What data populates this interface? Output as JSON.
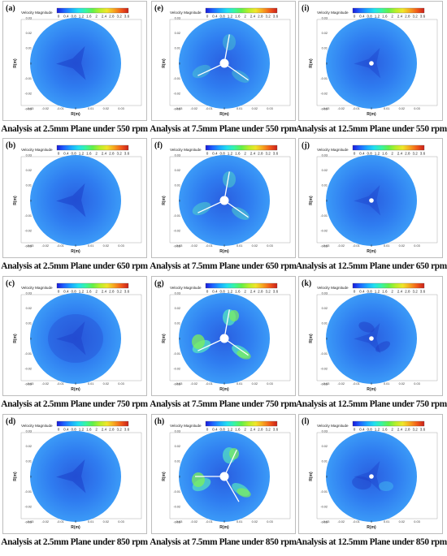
{
  "colorbar": {
    "title": "Velocity Magnitude",
    "ticks": [
      "0",
      "0.4",
      "0.8",
      "1.2",
      "1.6",
      "2",
      "2.4",
      "2.8",
      "3.2",
      "3.6"
    ],
    "colors": [
      "#1a1ad9",
      "#1f63ff",
      "#1aa8ff",
      "#22dff0",
      "#36f5a4",
      "#62f04a",
      "#b6ef2a",
      "#f0e62a",
      "#f7a41f",
      "#f25a1a",
      "#c8201a"
    ]
  },
  "axes": {
    "ylabel": "R(m)",
    "xlabel": "R(m)",
    "xticks": [
      "-0.03",
      "-0.02",
      "-0.01",
      "0",
      "0.01",
      "0.02",
      "0.03"
    ],
    "yticks": [
      "0.03",
      "0.02",
      "0.01",
      "0",
      "-0.01",
      "-0.02",
      "-0.03"
    ]
  },
  "panels": [
    {
      "letter": "(a)",
      "caption": "Analysis at 2.5mm Plane under 550 rpm",
      "plane": "2.5",
      "rpm": "550",
      "mode": "low"
    },
    {
      "letter": "(e)",
      "caption": "Analysis at 7.5mm Plane under 550 rpm",
      "plane": "7.5",
      "rpm": "550",
      "mode": "blade1"
    },
    {
      "letter": "(i)",
      "caption": "Analysis at 12.5mm Plane under 550 rpm",
      "plane": "12.5",
      "rpm": "550",
      "mode": "shaft"
    },
    {
      "letter": "(b)",
      "caption": "Analysis at 2.5mm Plane under 650 rpm",
      "plane": "2.5",
      "rpm": "650",
      "mode": "low"
    },
    {
      "letter": "(f)",
      "caption": "Analysis at 7.5mm Plane under 650 rpm",
      "plane": "7.5",
      "rpm": "650",
      "mode": "blade2"
    },
    {
      "letter": "(j)",
      "caption": "Analysis at 12.5mm Plane under 650 rpm",
      "plane": "12.5",
      "rpm": "650",
      "mode": "shaft"
    },
    {
      "letter": "(c)",
      "caption": "Analysis at 2.5mm Plane under 750 rpm",
      "plane": "2.5",
      "rpm": "750",
      "mode": "low2"
    },
    {
      "letter": "(g)",
      "caption": "Analysis at 7.5mm Plane under 750 rpm",
      "plane": "7.5",
      "rpm": "750",
      "mode": "blade3"
    },
    {
      "letter": "(k)",
      "caption": "Analysis at 12.5mm Plane under 750 rpm",
      "plane": "12.5",
      "rpm": "750",
      "mode": "shaft2"
    },
    {
      "letter": "(d)",
      "caption": "Analysis at 2.5mm Plane under 850 rpm",
      "plane": "2.5",
      "rpm": "850",
      "mode": "low"
    },
    {
      "letter": "(h)",
      "caption": "Analysis at 7.5mm Plane under 850 rpm",
      "plane": "7.5",
      "rpm": "850",
      "mode": "blade4"
    },
    {
      "letter": "(l)",
      "caption": "Analysis at 12.5mm Plane under 850 rpm",
      "plane": "12.5",
      "rpm": "850",
      "mode": "shaft3"
    }
  ]
}
